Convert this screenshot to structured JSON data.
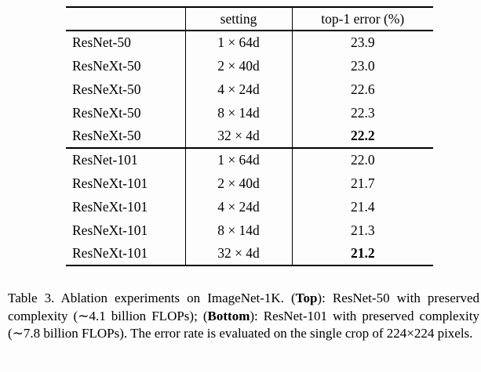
{
  "table": {
    "headers": [
      "",
      "setting",
      "top-1 error (%)"
    ],
    "groups": [
      {
        "rows": [
          {
            "model": "ResNet-50",
            "setting": "1 × 64d",
            "error": "23.9",
            "bold": false
          },
          {
            "model": "ResNeXt-50",
            "setting": "2 × 40d",
            "error": "23.0",
            "bold": false
          },
          {
            "model": "ResNeXt-50",
            "setting": "4 × 24d",
            "error": "22.6",
            "bold": false
          },
          {
            "model": "ResNeXt-50",
            "setting": "8 × 14d",
            "error": "22.3",
            "bold": false
          },
          {
            "model": "ResNeXt-50",
            "setting": "32 × 4d",
            "error": "22.2",
            "bold": true
          }
        ]
      },
      {
        "rows": [
          {
            "model": "ResNet-101",
            "setting": "1 × 64d",
            "error": "22.0",
            "bold": false
          },
          {
            "model": "ResNeXt-101",
            "setting": "2 × 40d",
            "error": "21.7",
            "bold": false
          },
          {
            "model": "ResNeXt-101",
            "setting": "4 × 24d",
            "error": "21.4",
            "bold": false
          },
          {
            "model": "ResNeXt-101",
            "setting": "8 × 14d",
            "error": "21.3",
            "bold": false
          },
          {
            "model": "ResNeXt-101",
            "setting": "32 × 4d",
            "error": "21.2",
            "bold": true
          }
        ]
      }
    ]
  },
  "caption": {
    "segments": [
      {
        "text": "Table 3. Ablation experiments on ImageNet-1K. (",
        "bold": false
      },
      {
        "text": "Top",
        "bold": true
      },
      {
        "text": "): ResNet-50 with preserved complexity (∼4.1 billion FLOPs); (",
        "bold": false
      },
      {
        "text": "Bottom",
        "bold": true
      },
      {
        "text": "): ResNet-101 with preserved complexity (∼7.8 billion FLOPs). The error rate is evaluated on the single crop of 224×224 pixels.",
        "bold": false
      }
    ]
  }
}
